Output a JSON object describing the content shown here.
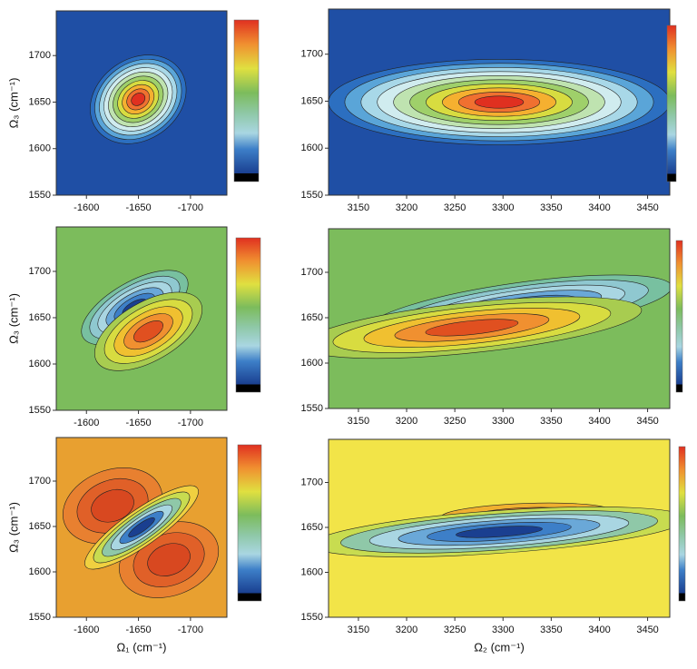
{
  "chart_data": [
    {
      "type": "contour",
      "y_label": "Ω₃ (cm⁻¹)",
      "xlim": [
        -1571,
        -1735
      ],
      "ylim": [
        1550,
        1748
      ],
      "xticks": [
        -1600,
        -1650,
        -1700
      ],
      "yticks": [
        1550,
        1600,
        1650,
        1700
      ]
    },
    {
      "type": "contour",
      "xlim": [
        3119,
        3473
      ],
      "ylim": [
        1550,
        1748
      ],
      "xticks": [
        3150,
        3200,
        3250,
        3300,
        3350,
        3400,
        3450
      ],
      "yticks": [
        1550,
        1600,
        1650,
        1700
      ]
    },
    {
      "type": "contour",
      "y_label": "Ω₃ (cm⁻¹)",
      "xlim": [
        -1571,
        -1735
      ],
      "ylim": [
        1550,
        1748
      ],
      "xticks": [
        -1600,
        -1650,
        -1700
      ],
      "yticks": [
        1550,
        1600,
        1650,
        1700
      ]
    },
    {
      "type": "contour",
      "xlim": [
        3119,
        3473
      ],
      "ylim": [
        1550,
        1748
      ],
      "xticks": [
        3150,
        3200,
        3250,
        3300,
        3350,
        3400,
        3450
      ],
      "yticks": [
        1550,
        1600,
        1650,
        1700
      ]
    },
    {
      "type": "contour",
      "y_label": "Ω₃ (cm⁻¹)",
      "x_label": "Ω₁ (cm⁻¹)",
      "xlim": [
        -1571,
        -1735
      ],
      "ylim": [
        1550,
        1748
      ],
      "xticks": [
        -1600,
        -1650,
        -1700
      ],
      "yticks": [
        1550,
        1600,
        1650,
        1700
      ]
    },
    {
      "type": "contour",
      "x_label": "Ω₂ (cm⁻¹)",
      "xlim": [
        3119,
        3473
      ],
      "ylim": [
        1550,
        1748
      ],
      "xticks": [
        3150,
        3200,
        3250,
        3300,
        3350,
        3400,
        3450
      ],
      "yticks": [
        1550,
        1600,
        1650,
        1700
      ]
    }
  ]
}
